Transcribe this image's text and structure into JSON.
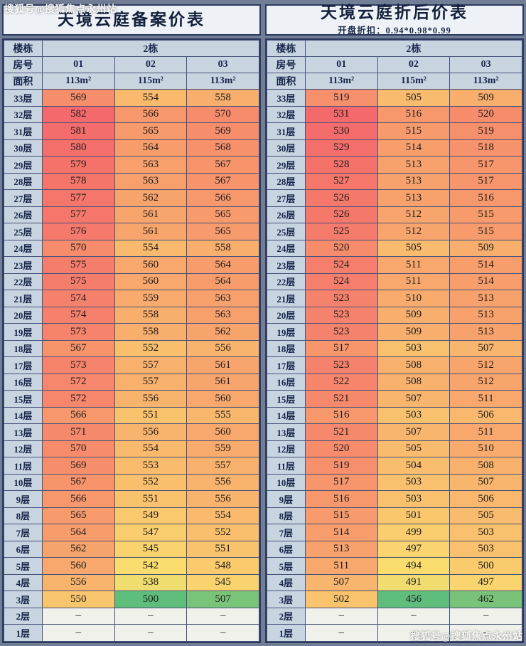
{
  "watermark": {
    "text": "搜狐号@搜狐焦点永州站"
  },
  "labels": {
    "building": "楼栋",
    "room": "房号",
    "area": "面积"
  },
  "colors": {
    "heat_min": "#5fbe7b",
    "heat_mid": "#fbdf6e",
    "heat_max": "#f4696b",
    "blank_cell": "#eff1ea",
    "header_bg": "#c9d4e1",
    "border": "#46537b",
    "page_bg": "#727e96"
  },
  "chart_data": [
    {
      "type": "heatmap",
      "title": "天境云庭备案价表",
      "subtitle": "",
      "building": "2栋",
      "rooms": [
        "01",
        "02",
        "03"
      ],
      "areas": [
        "113m²",
        "115m²",
        "113m²"
      ],
      "floors": [
        "33层",
        "32层",
        "31层",
        "30层",
        "29层",
        "28层",
        "27层",
        "26层",
        "25层",
        "24层",
        "23层",
        "22层",
        "21层",
        "20层",
        "19层",
        "18层",
        "17层",
        "16层",
        "15层",
        "14层",
        "13层",
        "12层",
        "11层",
        "10层",
        "9层",
        "8层",
        "7层",
        "6层",
        "5层",
        "4层",
        "3层",
        "2层",
        "1层"
      ],
      "values": [
        [
          569,
          554,
          558
        ],
        [
          582,
          566,
          570
        ],
        [
          581,
          565,
          569
        ],
        [
          580,
          564,
          568
        ],
        [
          579,
          563,
          567
        ],
        [
          578,
          563,
          567
        ],
        [
          577,
          562,
          566
        ],
        [
          577,
          561,
          565
        ],
        [
          576,
          561,
          565
        ],
        [
          570,
          554,
          558
        ],
        [
          575,
          560,
          564
        ],
        [
          575,
          560,
          564
        ],
        [
          574,
          559,
          563
        ],
        [
          574,
          558,
          563
        ],
        [
          573,
          558,
          562
        ],
        [
          567,
          552,
          556
        ],
        [
          573,
          557,
          561
        ],
        [
          572,
          557,
          561
        ],
        [
          572,
          556,
          560
        ],
        [
          566,
          551,
          555
        ],
        [
          571,
          556,
          560
        ],
        [
          570,
          554,
          559
        ],
        [
          569,
          553,
          557
        ],
        [
          567,
          552,
          556
        ],
        [
          566,
          551,
          556
        ],
        [
          565,
          549,
          554
        ],
        [
          564,
          547,
          552
        ],
        [
          562,
          545,
          551
        ],
        [
          560,
          542,
          548
        ],
        [
          556,
          538,
          545
        ],
        [
          550,
          500,
          507
        ],
        [
          "–",
          "–",
          "–"
        ],
        [
          "–",
          "–",
          "–"
        ]
      ]
    },
    {
      "type": "heatmap",
      "title": "天境云庭折后价表",
      "subtitle": "开盘折扣：0.94*0.98*0.99",
      "building": "2栋",
      "rooms": [
        "01",
        "02",
        "03"
      ],
      "areas": [
        "113m²",
        "115m²",
        "113m²"
      ],
      "floors": [
        "33层",
        "32层",
        "31层",
        "30层",
        "29层",
        "28层",
        "27层",
        "26层",
        "25层",
        "24层",
        "23层",
        "22层",
        "21层",
        "20层",
        "19层",
        "18层",
        "17层",
        "16层",
        "15层",
        "14层",
        "13层",
        "12层",
        "11层",
        "10层",
        "9层",
        "8层",
        "7层",
        "6层",
        "5层",
        "4层",
        "3层",
        "2层",
        "1层"
      ],
      "values": [
        [
          519,
          505,
          509
        ],
        [
          531,
          516,
          520
        ],
        [
          530,
          515,
          519
        ],
        [
          529,
          514,
          518
        ],
        [
          528,
          513,
          517
        ],
        [
          527,
          513,
          517
        ],
        [
          526,
          513,
          516
        ],
        [
          526,
          512,
          515
        ],
        [
          525,
          512,
          515
        ],
        [
          520,
          505,
          509
        ],
        [
          524,
          511,
          514
        ],
        [
          524,
          511,
          514
        ],
        [
          523,
          510,
          513
        ],
        [
          523,
          509,
          513
        ],
        [
          523,
          509,
          513
        ],
        [
          517,
          503,
          507
        ],
        [
          523,
          508,
          512
        ],
        [
          522,
          508,
          512
        ],
        [
          521,
          507,
          511
        ],
        [
          516,
          503,
          506
        ],
        [
          521,
          507,
          511
        ],
        [
          520,
          505,
          510
        ],
        [
          519,
          504,
          508
        ],
        [
          517,
          503,
          507
        ],
        [
          516,
          503,
          506
        ],
        [
          515,
          501,
          505
        ],
        [
          514,
          499,
          503
        ],
        [
          513,
          497,
          503
        ],
        [
          511,
          494,
          500
        ],
        [
          507,
          491,
          497
        ],
        [
          502,
          456,
          462
        ],
        [
          "–",
          "–",
          "–"
        ],
        [
          "–",
          "–",
          "–"
        ]
      ]
    }
  ]
}
